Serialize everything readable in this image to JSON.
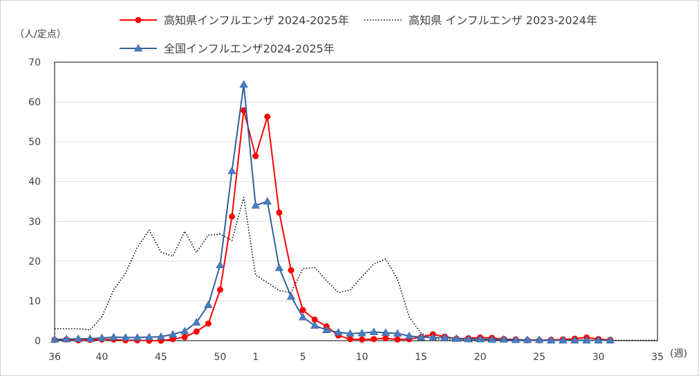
{
  "chart_data": {
    "type": "line",
    "ylabel": "（人/定点）",
    "xunit": "(週)",
    "ylim": [
      0,
      70
    ],
    "yticks": [
      0,
      10,
      20,
      30,
      40,
      50,
      60,
      70
    ],
    "x_categories": [
      "36",
      "37",
      "38",
      "39",
      "40",
      "41",
      "42",
      "43",
      "44",
      "45",
      "46",
      "47",
      "48",
      "49",
      "50",
      "51",
      "52",
      "1",
      "2",
      "3",
      "4",
      "5",
      "6",
      "7",
      "8",
      "9",
      "10",
      "11",
      "12",
      "13",
      "14",
      "15",
      "16",
      "17",
      "18",
      "19",
      "20",
      "21",
      "22",
      "23",
      "24",
      "25",
      "26",
      "27",
      "28",
      "29",
      "30",
      "31",
      "32",
      "33",
      "34",
      "35"
    ],
    "x_tick_labels": [
      "36",
      "40",
      "45",
      "50",
      "1",
      "5",
      "10",
      "15",
      "20",
      "25",
      "30",
      "35"
    ],
    "grid": "horizontal",
    "legend_position": "top",
    "series": [
      {
        "name": "高知県インフルエンザ 2024-2025年",
        "color": "#ff0000",
        "style": "solid",
        "marker": "circle",
        "values": [
          0.2,
          0.3,
          0.1,
          0.2,
          0.3,
          0.3,
          0.1,
          0.1,
          0.0,
          0.0,
          0.4,
          0.9,
          2.3,
          4.3,
          12.8,
          31.2,
          57.9,
          46.4,
          56.3,
          32.2,
          17.7,
          7.7,
          5.3,
          3.6,
          1.3,
          0.4,
          0.3,
          0.4,
          0.6,
          0.3,
          0.4,
          0.9,
          1.6,
          1.0,
          0.5,
          0.6,
          0.8,
          0.7,
          0.4,
          0.3,
          0.1,
          0.1,
          0.2,
          0.3,
          0.5,
          0.8,
          0.4,
          0.2
        ]
      },
      {
        "name": "高知県 インフルエンザ 2023-2024年",
        "color": "#000000",
        "style": "dotted",
        "marker": "none",
        "values": [
          3.0,
          3.0,
          3.0,
          2.7,
          6.0,
          12.8,
          17.0,
          23.5,
          27.8,
          22.3,
          21.2,
          27.5,
          22.2,
          26.5,
          26.8,
          25.2,
          36.0,
          16.5,
          14.6,
          12.6,
          12.1,
          18.1,
          18.4,
          15.1,
          12.1,
          12.7,
          16.1,
          19.3,
          20.5,
          15.5,
          5.9,
          1.9,
          0.5,
          0.3,
          0.2,
          0.1,
          0.1,
          0.1,
          0.1,
          0.1,
          0.1,
          0.1,
          0.1,
          0.1,
          0.1,
          0.1,
          0.1,
          0.1,
          0.1,
          0.1,
          0.1,
          0.1
        ]
      },
      {
        "name": "全国インフルエンザ2024-2025年",
        "color": "#2e5f9c",
        "style": "solid",
        "marker": "triangle",
        "values": [
          0.3,
          0.4,
          0.5,
          0.5,
          0.7,
          0.9,
          0.8,
          0.8,
          0.9,
          1.0,
          1.6,
          2.4,
          4.6,
          9.0,
          19.0,
          42.7,
          64.4,
          34.0,
          35.0,
          18.3,
          11.1,
          5.9,
          3.8,
          2.7,
          2.1,
          1.8,
          1.9,
          2.2,
          2.0,
          1.8,
          1.2,
          0.9,
          0.8,
          0.8,
          0.5,
          0.4,
          0.4,
          0.3,
          0.3,
          0.2,
          0.2,
          0.2,
          0.1,
          0.1,
          0.1,
          0.1,
          0.1,
          0.1
        ]
      }
    ]
  }
}
